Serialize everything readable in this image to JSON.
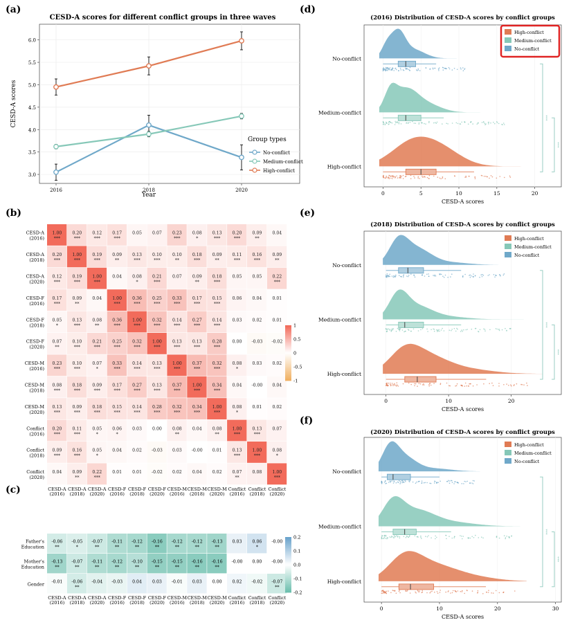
{
  "panel_labels": [
    "(a)",
    "(b)",
    "(c)",
    "(d)",
    "(e)",
    "(f)"
  ],
  "colors": {
    "no_conflict": "#6fa8c9",
    "medium_conflict": "#86c8b8",
    "high_conflict": "#e07b54",
    "panel_bg": "#ffffff",
    "plot_bg": "#ebebeb",
    "grid": "#f7f7f7",
    "highlight_box": "#e02424",
    "heat_pos": "#f26b5b",
    "heat_neg": "#f0b062",
    "heat_c_pos": "#6aa3cc",
    "heat_c_neg": "#6dbfae"
  },
  "chart_data": [
    {
      "panel": "(a)",
      "type": "line",
      "title": "CESD-A scores for different conflict groups in three waves",
      "xlabel": "Year",
      "ylabel": "CESD-A scores",
      "x": [
        2016,
        2018,
        2020
      ],
      "xticks": [
        "2016",
        "2018",
        "2020"
      ],
      "yticks": [
        "3.0",
        "3.5",
        "4.0",
        "4.5",
        "5.0",
        "5.5",
        "6.0"
      ],
      "ylim": [
        2.8,
        6.35
      ],
      "legend_title": "Group types",
      "legend_position": "right",
      "series": [
        {
          "name": "No-conflict",
          "color_key": "no_conflict",
          "values": [
            3.05,
            4.1,
            3.38
          ],
          "err": [
            0.18,
            0.22,
            0.28
          ]
        },
        {
          "name": "Medium-conflict",
          "color_key": "medium_conflict",
          "values": [
            3.62,
            3.9,
            4.3
          ],
          "err": [
            0.05,
            0.06,
            0.06
          ]
        },
        {
          "name": "High-conflict",
          "color_key": "high_conflict",
          "values": [
            4.95,
            5.42,
            5.98
          ],
          "err": [
            0.18,
            0.2,
            0.2
          ]
        }
      ]
    },
    {
      "panel": "(b)",
      "type": "heatmap",
      "labels": [
        [
          "CESD-A",
          "(2016)"
        ],
        [
          "CESD-A",
          "(2018)"
        ],
        [
          "CESD-A",
          "(2020)"
        ],
        [
          "CESD-F",
          "(2016)"
        ],
        [
          "CESD-F",
          "(2018)"
        ],
        [
          "CESD-F",
          "(2020)"
        ],
        [
          "CESD-M",
          "(2016)"
        ],
        [
          "CESD-M",
          "(2018)"
        ],
        [
          "CESD-M",
          "(2020)"
        ],
        [
          "Conflict",
          "(2016)"
        ],
        [
          "Conflict",
          "(2018)"
        ],
        [
          "Conflict",
          "(2020)"
        ]
      ],
      "values": [
        [
          "1.00",
          "0.20",
          "0.12",
          "0.17",
          "0.05",
          "0.07",
          "0.23",
          "0.08",
          "0.13",
          "0.20",
          "0.09",
          "0.04"
        ],
        [
          "0.20",
          "1.00",
          "0.19",
          "0.09",
          "0.13",
          "0.10",
          "0.10",
          "0.18",
          "0.09",
          "0.11",
          "0.16",
          "0.09"
        ],
        [
          "0.12",
          "0.19",
          "1.00",
          "0.04",
          "0.08",
          "0.21",
          "0.07",
          "0.09",
          "0.18",
          "0.05",
          "0.05",
          "0.22"
        ],
        [
          "0.17",
          "0.09",
          "0.04",
          "1.00",
          "0.36",
          "0.25",
          "0.33",
          "0.17",
          "0.15",
          "0.06",
          "0.04",
          "0.01"
        ],
        [
          "0.05",
          "0.13",
          "0.08",
          "0.36",
          "1.00",
          "0.32",
          "0.14",
          "0.27",
          "0.14",
          "0.03",
          "0.02",
          "0.01"
        ],
        [
          "0.07",
          "0.10",
          "0.21",
          "0.25",
          "0.32",
          "1.00",
          "0.13",
          "0.13",
          "0.28",
          "0.00",
          "-0.03",
          "-0.02"
        ],
        [
          "0.23",
          "0.10",
          "0.07",
          "0.33",
          "0.14",
          "0.13",
          "1.00",
          "0.37",
          "0.32",
          "0.08",
          "0.03",
          "0.02"
        ],
        [
          "0.08",
          "0.18",
          "0.09",
          "0.17",
          "0.27",
          "0.13",
          "0.37",
          "1.00",
          "0.34",
          "0.04",
          "-0.00",
          "0.04"
        ],
        [
          "0.13",
          "0.09",
          "0.18",
          "0.15",
          "0.14",
          "0.28",
          "0.32",
          "0.34",
          "1.00",
          "0.08",
          "0.01",
          "0.02"
        ],
        [
          "0.20",
          "0.11",
          "0.05",
          "0.06",
          "0.03",
          "0.00",
          "0.08",
          "0.04",
          "0.08",
          "1.00",
          "0.13",
          "0.07"
        ],
        [
          "0.09",
          "0.16",
          "0.05",
          "0.04",
          "0.02",
          "-0.03",
          "0.03",
          "-0.00",
          "0.01",
          "0.13",
          "1.00",
          "0.08"
        ],
        [
          "0.04",
          "0.09",
          "0.22",
          "0.01",
          "0.01",
          "-0.02",
          "0.02",
          "0.04",
          "0.02",
          "0.07",
          "0.08",
          "1.00"
        ]
      ],
      "stars": [
        [
          "***",
          "***",
          "***",
          "***",
          "",
          "",
          "***",
          "*",
          "***",
          "***",
          "**",
          ""
        ],
        [
          "***",
          "***",
          "***",
          "**",
          "***",
          "***",
          "**",
          "***",
          "**",
          "***",
          "***",
          "**"
        ],
        [
          "***",
          "***",
          "***",
          "",
          "*",
          "***",
          "",
          "**",
          "***",
          "",
          "",
          "***"
        ],
        [
          "***",
          "**",
          "",
          "***",
          "***",
          "***",
          "***",
          "***",
          "***",
          "",
          "",
          ""
        ],
        [
          "*",
          "***",
          "**",
          "***",
          "***",
          "***",
          "***",
          "***",
          "***",
          "",
          "",
          ""
        ],
        [
          "**",
          "***",
          "***",
          "***",
          "***",
          "***",
          "***",
          "***",
          "***",
          "",
          "",
          ""
        ],
        [
          "***",
          "***",
          "*",
          "***",
          "***",
          "***",
          "***",
          "***",
          "***",
          "*",
          "",
          ""
        ],
        [
          "***",
          "***",
          "***",
          "***",
          "***",
          "***",
          "***",
          "***",
          "***",
          "",
          "",
          ""
        ],
        [
          "***",
          "***",
          "***",
          "***",
          "***",
          "***",
          "***",
          "***",
          "***",
          "*",
          "",
          ""
        ],
        [
          "***",
          "***",
          "*",
          "*",
          "",
          "",
          "**",
          "",
          "**",
          "***",
          "***",
          ""
        ],
        [
          "***",
          "***",
          "*",
          "",
          "",
          "",
          "",
          "",
          "",
          "***",
          "***",
          "*"
        ],
        [
          "",
          "**",
          "***",
          "",
          "",
          "",
          "",
          "",
          "",
          "**",
          "",
          "***"
        ]
      ],
      "legend_ticks": [
        "1",
        "0.5",
        "0",
        "-0.5",
        "-1"
      ],
      "legend_values": [
        1,
        0.5,
        0,
        -0.5,
        -1
      ]
    },
    {
      "panel": "(c)",
      "type": "heatmap",
      "row_labels": [
        [
          "Father's",
          "Education"
        ],
        [
          "Mother's",
          "Education"
        ],
        [
          "Gender"
        ]
      ],
      "col_labels": [
        [
          "CESD-A",
          "(2016)"
        ],
        [
          "CESD-A",
          "(2018)"
        ],
        [
          "CESD-A",
          "(2020)"
        ],
        [
          "CESD-F",
          "(2016)"
        ],
        [
          "CESD-F",
          "(2018)"
        ],
        [
          "CESD-F",
          "(2020)"
        ],
        [
          "CESD-M",
          "(2016)"
        ],
        [
          "CESD-M",
          "(2018)"
        ],
        [
          "CESD-M",
          "(2020)"
        ],
        [
          "Conflict",
          "(2016)"
        ],
        [
          "Conflict",
          "(2018)"
        ],
        [
          "Conflict",
          "(2020)"
        ]
      ],
      "values": [
        [
          "-0.06",
          "-0.05",
          "-0.07",
          "-0.11",
          "-0.12",
          "-0.16",
          "-0.12",
          "-0.12",
          "-0.13",
          "0.03",
          "0.06",
          "-0.00"
        ],
        [
          "-0.13",
          "-0.07",
          "-0.11",
          "-0.12",
          "-0.10",
          "-0.15",
          "-0.15",
          "-0.16",
          "-0.16",
          "-0.00",
          "0.00",
          "-0.00"
        ],
        [
          "-0.01",
          "-0.06",
          "-0.04",
          "-0.03",
          "0.04",
          "0.03",
          "-0.01",
          "0.03",
          "0.00",
          "0.02",
          "-0.02",
          "-0.07"
        ]
      ],
      "stars": [
        [
          "**",
          "*",
          "**",
          "**",
          "**",
          "**",
          "**",
          "**",
          "**",
          "",
          "*",
          ""
        ],
        [
          "**",
          "**",
          "**",
          "**",
          "**",
          "**",
          "**",
          "**",
          "**",
          "",
          "",
          ""
        ],
        [
          "",
          "**",
          "",
          "",
          "",
          "",
          "",
          "",
          "",
          "",
          "",
          "**"
        ]
      ],
      "legend_ticks": [
        "0.2",
        "0.1",
        "0.0",
        "-0.1",
        "-0.2"
      ],
      "legend_values": [
        0.2,
        0.1,
        0.0,
        -0.1,
        -0.2
      ]
    },
    {
      "panel": "(d)",
      "type": "raincloud",
      "title": "(2016) Distribution of CESD-A scores by conflict groups",
      "xlabel": "CESD-A scores",
      "xticks": [
        0,
        5,
        10,
        15,
        20
      ],
      "xlim": [
        -2.5,
        23.5
      ],
      "highlight_legend": true,
      "legend": [
        "High-conflict",
        "Medium-conflict",
        "No-conflict"
      ],
      "significance": [
        "***",
        "***"
      ],
      "groups": [
        {
          "name": "No-conflict",
          "color_key": "no_conflict",
          "q1": 2.0,
          "median": 3.0,
          "q3": 4.3,
          "wmin": 0,
          "wmax": 7,
          "range": [
            -0.5,
            13
          ],
          "peaks": [
            [
              0.5,
              0.5,
              0.7
            ],
            [
              2.0,
              1.0,
              0.9
            ],
            [
              4.0,
              0.35,
              1.5
            ]
          ]
        },
        {
          "name": "Medium-conflict",
          "color_key": "medium_conflict",
          "q1": 2.0,
          "median": 3.0,
          "q3": 5.0,
          "wmin": 0,
          "wmax": 8,
          "range": [
            -0.5,
            18
          ],
          "peaks": [
            [
              1.0,
              0.75,
              0.8
            ],
            [
              3.0,
              0.95,
              1.6
            ],
            [
              6.0,
              0.3,
              1.8
            ]
          ]
        },
        {
          "name": "High-conflict",
          "color_key": "high_conflict",
          "q1": 3.0,
          "median": 5.0,
          "q3": 7.0,
          "wmin": 0,
          "wmax": 12,
          "range": [
            -0.5,
            19
          ],
          "peaks": [
            [
              4.0,
              0.85,
              2.8
            ],
            [
              8.0,
              0.45,
              2.6
            ]
          ]
        }
      ]
    },
    {
      "panel": "(e)",
      "type": "raincloud",
      "title": "(2018) Distribution of CESD-A scores by conflict groups",
      "xlabel": "CESD-A scores",
      "xticks": [
        0,
        10,
        20
      ],
      "xlim": [
        -3.5,
        28
      ],
      "highlight_legend": false,
      "legend": [
        "High-conflict",
        "Medium-conflict",
        "No-conflict"
      ],
      "significance": [
        "***",
        "***"
      ],
      "groups": [
        {
          "name": "No-conflict",
          "color_key": "no_conflict",
          "q1": 2.0,
          "median": 3.5,
          "q3": 6.0,
          "wmin": 0,
          "wmax": 12,
          "range": [
            -0.5,
            22
          ],
          "peaks": [
            [
              2.0,
              0.9,
              1.5
            ],
            [
              5.0,
              0.6,
              2.2
            ],
            [
              10,
              0.1,
              3
            ]
          ]
        },
        {
          "name": "Medium-conflict",
          "color_key": "medium_conflict",
          "q1": 2.0,
          "median": 3.0,
          "q3": 6.0,
          "wmin": 0,
          "wmax": 12,
          "range": [
            -0.5,
            22
          ],
          "peaks": [
            [
              2.0,
              0.95,
              1.5
            ],
            [
              5.0,
              0.5,
              2.4
            ],
            [
              10,
              0.1,
              3
            ]
          ]
        },
        {
          "name": "High-conflict",
          "color_key": "high_conflict",
          "q1": 3.0,
          "median": 5.0,
          "q3": 8.0,
          "wmin": 0,
          "wmax": 16,
          "range": [
            -0.5,
            25
          ],
          "peaks": [
            [
              3.0,
              0.75,
              2.5
            ],
            [
              7.0,
              0.5,
              3.2
            ],
            [
              13,
              0.15,
              4
            ]
          ]
        }
      ]
    },
    {
      "panel": "(f)",
      "type": "raincloud",
      "title": "(2020) Distribution of CESD-A scores by conflict groups",
      "xlabel": "CESD-A scores",
      "xticks": [
        0,
        10,
        20,
        30
      ],
      "xlim": [
        -3,
        31
      ],
      "highlight_legend": false,
      "legend": [
        "High-conflict",
        "Medium-conflict",
        "No-conflict"
      ],
      "significance": [
        "***",
        "***"
      ],
      "groups": [
        {
          "name": "No-conflict",
          "color_key": "no_conflict",
          "q1": 1.0,
          "median": 2.0,
          "q3": 5.0,
          "wmin": 0,
          "wmax": 10,
          "range": [
            -0.5,
            18
          ],
          "peaks": [
            [
              1.5,
              0.95,
              1.4
            ],
            [
              4.0,
              0.55,
              2.0
            ],
            [
              9.0,
              0.12,
              3
            ]
          ]
        },
        {
          "name": "Medium-conflict",
          "color_key": "medium_conflict",
          "q1": 2.0,
          "median": 4.0,
          "q3": 6.0,
          "wmin": 0,
          "wmax": 12,
          "range": [
            -0.5,
            25
          ],
          "peaks": [
            [
              2.0,
              0.85,
              1.8
            ],
            [
              6.0,
              0.55,
              3
            ],
            [
              12,
              0.15,
              4
            ]
          ]
        },
        {
          "name": "High-conflict",
          "color_key": "high_conflict",
          "q1": 3.0,
          "median": 5.0,
          "q3": 9.0,
          "wmin": 0,
          "wmax": 18,
          "range": [
            -0.5,
            25
          ],
          "peaks": [
            [
              4.0,
              0.75,
              2.8
            ],
            [
              9.0,
              0.5,
              4
            ],
            [
              16,
              0.12,
              4
            ]
          ]
        }
      ]
    }
  ]
}
